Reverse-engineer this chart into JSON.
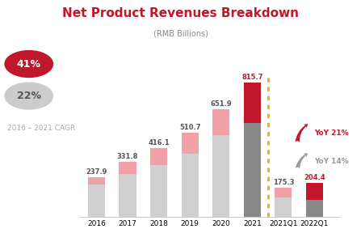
{
  "title": "Net Product Revenues Breakdown",
  "subtitle": "(RMB Billions)",
  "categories": [
    "2016",
    "2017",
    "2018",
    "2019",
    "2020",
    "2021",
    "2021Q1",
    "2022Q1"
  ],
  "electronics_values": [
    195,
    258,
    313,
    383,
    495,
    570,
    118,
    102
  ],
  "general_merch_values": [
    42.9,
    73.8,
    103.1,
    127.7,
    156.9,
    245.7,
    57.3,
    102.4
  ],
  "totals": [
    237.9,
    331.8,
    416.1,
    510.7,
    651.9,
    815.7,
    175.3,
    204.4
  ],
  "electronics_color_normal": "#d0d0d0",
  "electronics_color_2021": "#888888",
  "electronics_color_2022q1": "#888888",
  "general_merch_color_normal": "#f2a0a8",
  "general_merch_color_2021": "#c0182a",
  "general_merch_color_2022q1": "#c0182a",
  "bar_width": 0.55,
  "cagr_41_color": "#c0182a",
  "label_color_normal": "#555555",
  "label_color_red": "#c0182a",
  "dotted_line_color": "#e8b020",
  "yoy21_color": "#c0182a",
  "yoy14_color": "#999999",
  "legend_elec_color": "#d0d0d0",
  "legend_merch_color": "#f2a0a8",
  "title_color": "#c0182a",
  "subtitle_color": "#888888",
  "cagr_text_color": "#aaaaaa"
}
